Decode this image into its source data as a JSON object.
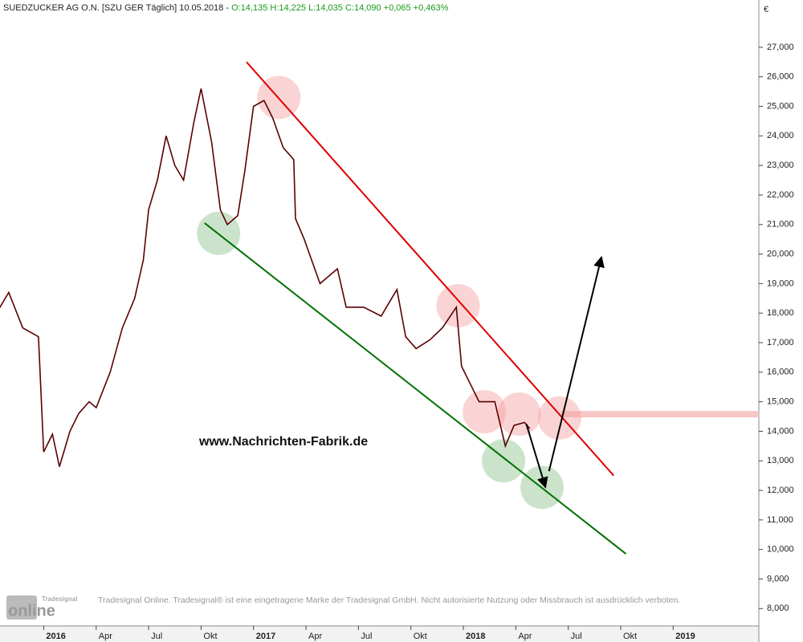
{
  "chart_data": {
    "type": "line",
    "title": "SUEDZUCKER AG  O.N. [SZU GER  Täglich]  10.05.2018 -",
    "ohlc": "O:14,135 H:14,225 L:14,035 C:14,090 +0,065 +0,463%",
    "y_axis_label": "€",
    "watermark": "www.Nachrichten-Fabrik.de",
    "footer": "Tradesignal Online. Tradesignal® ist eine eingetragene Marke der Tradesignal GmbH. Nicht autorisierte Nutzung oder Missbrauch ist ausdrücklich verboten.",
    "logo": {
      "brand": "Tradesignal",
      "name": "online"
    },
    "x": [
      -2.7,
      -2.0,
      -1.2,
      -0.3,
      0.0,
      0.5,
      0.9,
      1.5,
      2.0,
      2.6,
      3.0,
      3.8,
      4.5,
      5.2,
      5.7,
      6.0,
      6.5,
      7.0,
      7.5,
      8.0,
      8.6,
      9.0,
      9.6,
      10.1,
      10.5,
      11.1,
      11.5,
      12.0,
      12.6,
      13.1,
      13.7,
      14.3,
      14.4,
      14.9,
      15.8,
      16.8,
      17.3,
      18.3,
      19.3,
      20.2,
      20.7,
      21.3,
      22.1,
      22.8,
      23.6,
      23.9,
      24.9,
      25.8,
      26.4,
      26.9,
      27.5,
      27.8
    ],
    "series": [
      {
        "color": "#5a0000",
        "values": [
          18.0,
          18.7,
          17.5,
          17.2,
          13.3,
          13.9,
          12.8,
          14.0,
          14.6,
          15.0,
          14.8,
          16.0,
          17.5,
          18.5,
          19.8,
          21.5,
          22.5,
          24.0,
          23.0,
          22.5,
          24.5,
          25.6,
          23.8,
          21.5,
          21.0,
          21.3,
          22.8,
          25.0,
          25.2,
          24.6,
          23.6,
          23.2,
          21.2,
          20.5,
          19.0,
          19.5,
          18.2,
          18.2,
          17.9,
          18.8,
          17.2,
          16.8,
          17.1,
          17.5,
          18.2,
          16.2,
          15.0,
          15.0,
          13.5,
          14.2,
          14.3,
          14.09
        ]
      }
    ],
    "xlim": [
      -2.5,
      40.9
    ],
    "ylim": [
      7.41,
      28.6
    ],
    "xticks": [
      {
        "value": 0,
        "label": "2016"
      },
      {
        "value": 3,
        "label": "Apr"
      },
      {
        "value": 6,
        "label": "Jul"
      },
      {
        "value": 9,
        "label": "Okt"
      },
      {
        "value": 12,
        "label": "2017"
      },
      {
        "value": 15,
        "label": "Apr"
      },
      {
        "value": 18,
        "label": "Jul"
      },
      {
        "value": 21,
        "label": "Okt"
      },
      {
        "value": 24,
        "label": "2018"
      },
      {
        "value": 27,
        "label": "Apr"
      },
      {
        "value": 30,
        "label": "Jul"
      },
      {
        "value": 33,
        "label": "Okt"
      },
      {
        "value": 36,
        "label": "2019"
      }
    ],
    "yticks": [
      {
        "value": 8,
        "label": "8,000"
      },
      {
        "value": 9,
        "label": "9,000"
      },
      {
        "value": 10,
        "label": "10,000"
      },
      {
        "value": 11,
        "label": "11,000"
      },
      {
        "value": 12,
        "label": "12,000"
      },
      {
        "value": 13,
        "label": "13,000"
      },
      {
        "value": 14,
        "label": "14,000"
      },
      {
        "value": 15,
        "label": "15,000"
      },
      {
        "value": 16,
        "label": "16,000"
      },
      {
        "value": 17,
        "label": "17,000"
      },
      {
        "value": 18,
        "label": "18,000"
      },
      {
        "value": 19,
        "label": "19,000"
      },
      {
        "value": 20,
        "label": "20,000"
      },
      {
        "value": 21,
        "label": "21,000"
      },
      {
        "value": 22,
        "label": "22,000"
      },
      {
        "value": 23,
        "label": "23,000"
      },
      {
        "value": 24,
        "label": "24,000"
      },
      {
        "value": 25,
        "label": "25,000"
      },
      {
        "value": 26,
        "label": "26,000"
      },
      {
        "value": 27,
        "label": "27,000"
      }
    ],
    "annotations": {
      "level": {
        "color": "#f7c6c6",
        "x": [
          29.6,
          40.9
        ],
        "y": 14.58
      },
      "trendlines": [
        {
          "color": "#e00000",
          "x": [
            11.6,
            32.6
          ],
          "y": [
            26.5,
            12.5
          ]
        },
        {
          "color": "#007000",
          "x": [
            9.2,
            33.3
          ],
          "y": [
            21.05,
            9.85
          ]
        }
      ],
      "circles": [
        {
          "color": "#f4a0a0",
          "x": 13.45,
          "y": 25.3
        },
        {
          "color": "#f4a0a0",
          "x": 23.7,
          "y": 18.25
        },
        {
          "color": "#f4a0a0",
          "x": 25.2,
          "y": 14.66
        },
        {
          "color": "#f4a0a0",
          "x": 27.2,
          "y": 14.58
        },
        {
          "color": "#f4a0a0",
          "x": 29.5,
          "y": 14.45
        },
        {
          "color": "#8cc08c",
          "x": 10.0,
          "y": 20.7
        },
        {
          "color": "#8cc08c",
          "x": 26.3,
          "y": 13.0
        },
        {
          "color": "#8cc08c",
          "x": 28.5,
          "y": 12.1
        }
      ],
      "arrows": [
        {
          "color": "#000000",
          "x": [
            27.6,
            28.7
          ],
          "y": [
            14.25,
            12.1
          ]
        },
        {
          "color": "#000000",
          "x": [
            28.9,
            31.9
          ],
          "y": [
            12.65,
            19.9
          ]
        }
      ]
    }
  }
}
